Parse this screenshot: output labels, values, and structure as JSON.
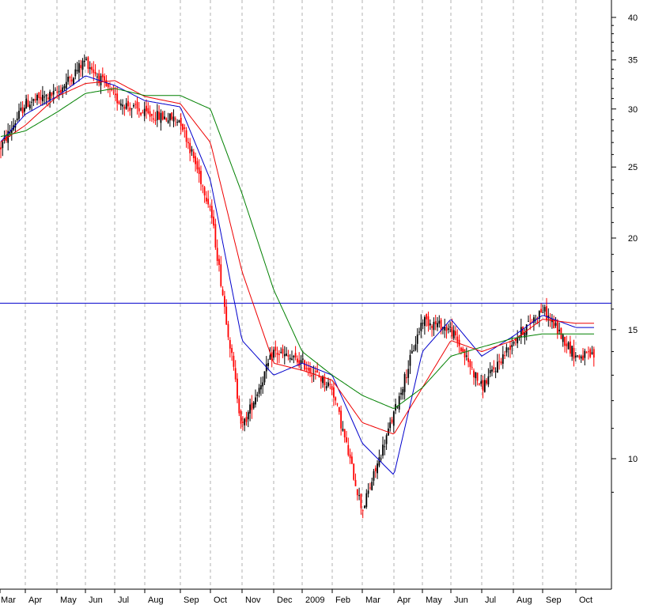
{
  "chart_data": {
    "type": "candlestick",
    "title": "",
    "xlabel": "",
    "ylabel": "",
    "y_scale": "log",
    "ylim": [
      8,
      42
    ],
    "grid": {
      "x": true,
      "y": false
    },
    "x_tick_labels": [
      "Mar",
      "Apr",
      "May",
      "Jun",
      "Jul",
      "Aug",
      "Sep",
      "Oct",
      "Nov",
      "Dec",
      "2009",
      "Feb",
      "Mar",
      "Apr",
      "May",
      "Jun",
      "Jul",
      "Aug",
      "Sep",
      "Oct"
    ],
    "y_tick_labels": [
      10,
      15,
      20,
      25,
      30,
      35,
      40
    ],
    "y_minor_ticks": [
      9,
      11,
      12,
      13,
      14,
      16,
      17,
      18,
      19,
      21,
      22,
      23,
      24,
      26,
      27,
      28,
      29,
      31,
      32,
      33,
      34,
      36,
      37,
      38,
      39
    ],
    "horizontal_line": {
      "value": 16.3,
      "color": "#0000cc"
    },
    "colors": {
      "up": "#000000",
      "down": "#ff0000",
      "blue_ma": "#0000cc",
      "red_ma": "#ee0000",
      "green_ma": "#008000",
      "grid": "#b0b0b0"
    },
    "price_path": [
      [
        "Mar",
        26.5
      ],
      [
        "Apr",
        30.5
      ],
      [
        "May",
        31.5
      ],
      [
        "Jun",
        35
      ],
      [
        "Jul",
        31
      ],
      [
        "Aug",
        29.5
      ],
      [
        "Sep",
        29
      ],
      [
        "Oct",
        22
      ],
      [
        "Nov",
        11
      ],
      [
        "Dec",
        14
      ],
      [
        "2009",
        13.5
      ],
      [
        "Feb",
        12.5
      ],
      [
        "Mar",
        8.5
      ],
      [
        "Apr",
        11.5
      ],
      [
        "May",
        15.5
      ],
      [
        "Jun",
        15
      ],
      [
        "Jul",
        12.5
      ],
      [
        "Aug",
        14.5
      ],
      [
        "Sep",
        16
      ],
      [
        "Oct",
        13.8
      ]
    ],
    "series": [
      {
        "color": "blue",
        "values": [
          27.0,
          29.5,
          31.2,
          33.3,
          32.3,
          30.8,
          30.2,
          24.0,
          14.5,
          13.0,
          13.5,
          13.0,
          10.5,
          9.5,
          14.0,
          15.5,
          13.8,
          14.7,
          15.7,
          15.1
        ]
      },
      {
        "color": "red",
        "values": [
          27.0,
          28.5,
          31.2,
          32.5,
          32.8,
          31.2,
          30.5,
          27.0,
          18.0,
          13.5,
          13.2,
          12.8,
          11.2,
          10.8,
          12.5,
          14.5,
          14.0,
          14.5,
          15.5,
          15.3
        ]
      },
      {
        "color": "green",
        "values": [
          27.5,
          28.0,
          29.7,
          31.5,
          32.0,
          31.3,
          31.3,
          30.0,
          23.0,
          17.0,
          14.0,
          13.0,
          12.2,
          11.7,
          12.5,
          13.8,
          14.2,
          14.6,
          14.8,
          14.8
        ]
      }
    ]
  }
}
